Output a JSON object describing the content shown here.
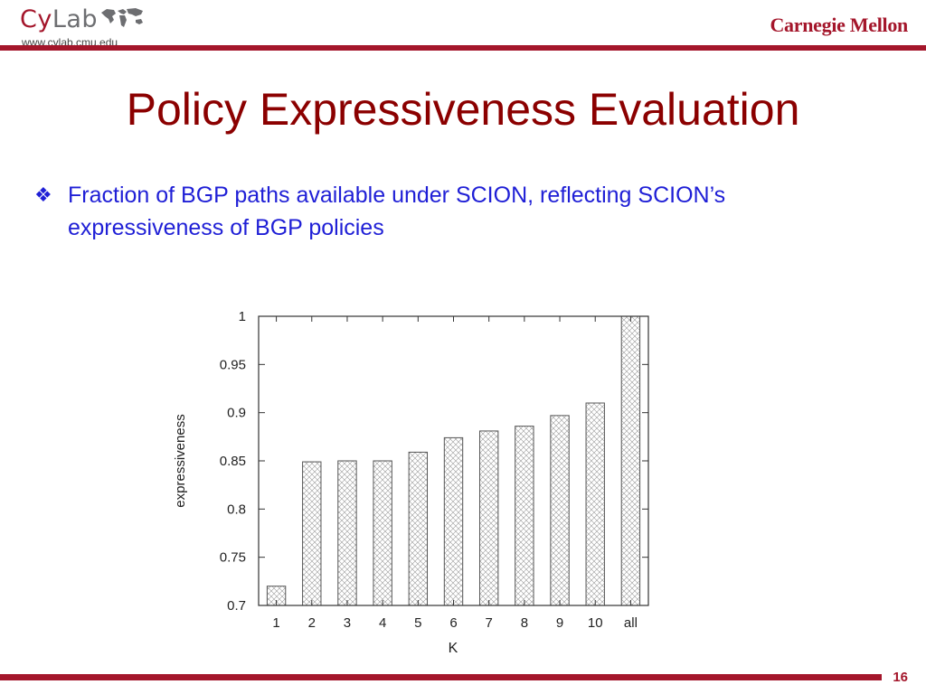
{
  "header": {
    "logo_cy": "Cy",
    "logo_lab": "Lab",
    "url": "www.cylab.cmu.edu",
    "university": "Carnegie Mellon"
  },
  "slide": {
    "title": "Policy Expressiveness Evaluation",
    "bullet_icon": "diamond-four-icon",
    "bullet": "Fraction of BGP paths available under SCION, reflecting SCION’s expressiveness of BGP policies",
    "page_number": "16"
  },
  "colors": {
    "brand_red": "#a4162b",
    "title_red": "#8b0000",
    "bullet_blue": "#1f1fd6"
  },
  "chart_data": {
    "type": "bar",
    "categories": [
      "1",
      "2",
      "3",
      "4",
      "5",
      "6",
      "7",
      "8",
      "9",
      "10",
      "all"
    ],
    "values": [
      0.72,
      0.849,
      0.85,
      0.85,
      0.859,
      0.874,
      0.881,
      0.886,
      0.897,
      0.91,
      1.0
    ],
    "xlabel": "K",
    "ylabel": "expressiveness",
    "ylim": [
      0.7,
      1.0
    ],
    "yticks": [
      "0.7",
      "0.75",
      "0.8",
      "0.85",
      "0.9",
      "0.95",
      "1"
    ],
    "grid": false,
    "bar_fill": "crosshatch"
  }
}
